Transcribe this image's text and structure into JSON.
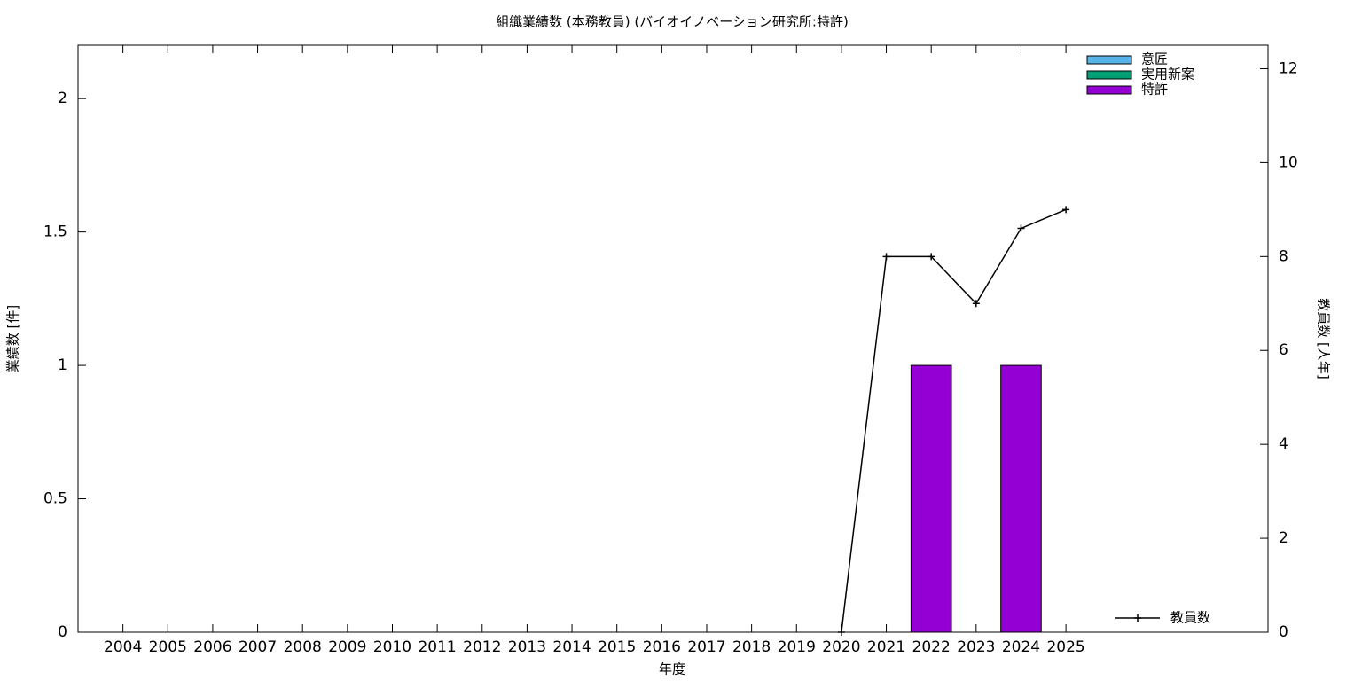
{
  "chart_data": {
    "type": "bar",
    "stacked": true,
    "title": "組織業績数 (本務教員) (バイオイノベーション研究所:特許)",
    "x_label": "年度",
    "y_label": "業績数 [件]",
    "y2_label": "教員数 [人年]",
    "categories": [
      "2004",
      "2005",
      "2006",
      "2007",
      "2008",
      "2009",
      "2010",
      "2011",
      "2012",
      "2013",
      "2014",
      "2015",
      "2016",
      "2017",
      "2018",
      "2019",
      "2020",
      "2021",
      "2022",
      "2023",
      "2024",
      "2025"
    ],
    "series": [
      {
        "name": "意匠",
        "color": "#56b4e9",
        "values": [
          null,
          null,
          null,
          null,
          null,
          null,
          null,
          null,
          null,
          null,
          null,
          null,
          null,
          null,
          null,
          null,
          0,
          0,
          0,
          0,
          0,
          0
        ]
      },
      {
        "name": "実用新案",
        "color": "#009e73",
        "values": [
          null,
          null,
          null,
          null,
          null,
          null,
          null,
          null,
          null,
          null,
          null,
          null,
          null,
          null,
          null,
          null,
          0,
          0,
          0,
          0,
          0,
          0
        ]
      },
      {
        "name": "特許",
        "color": "#9400d3",
        "values": [
          null,
          null,
          null,
          null,
          null,
          null,
          null,
          null,
          null,
          null,
          null,
          null,
          null,
          null,
          null,
          null,
          0,
          0,
          1,
          0,
          1,
          0
        ]
      },
      {
        "name": "教員数",
        "type": "line",
        "axis": "y2",
        "color": "#000000",
        "values": [
          null,
          null,
          null,
          null,
          null,
          null,
          null,
          null,
          null,
          null,
          null,
          null,
          null,
          null,
          null,
          null,
          0,
          8,
          8,
          7,
          8.6,
          9
        ]
      }
    ],
    "ylim": [
      0,
      2.2
    ],
    "yticks": [
      0,
      0.5,
      1,
      1.5,
      2
    ],
    "y2lim": [
      0,
      12.5
    ],
    "y2ticks": [
      0,
      2,
      4,
      6,
      8,
      10,
      12
    ]
  }
}
